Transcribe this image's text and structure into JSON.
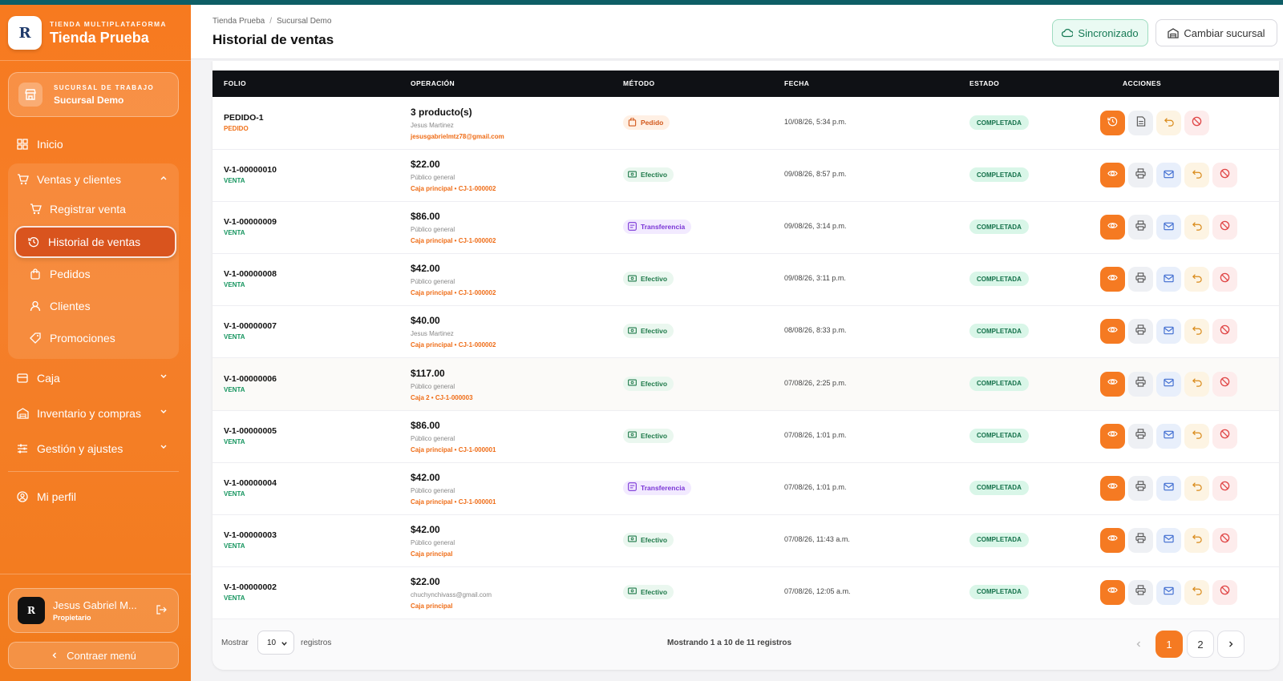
{
  "brand": {
    "kicker": "TIENDA MULTIPLATAFORMA",
    "name": "Tienda Prueba"
  },
  "branch": {
    "kicker": "SUCURSAL DE TRABAJO",
    "name": "Sucursal Demo"
  },
  "nav": {
    "inicio": "Inicio",
    "ventas_clientes": "Ventas y clientes",
    "registrar_venta": "Registrar venta",
    "historial_ventas": "Historial de ventas",
    "pedidos": "Pedidos",
    "clientes": "Clientes",
    "promociones": "Promociones",
    "caja": "Caja",
    "inventario": "Inventario y compras",
    "gestion": "Gestión y ajustes",
    "perfil": "Mi perfil"
  },
  "user": {
    "name": "Jesus Gabriel M...",
    "role": "Propietario"
  },
  "collapse_label": "Contraer menú",
  "header": {
    "crumb_1": "Tienda Prueba",
    "crumb_sep": "/",
    "crumb_2": "Sucursal Demo",
    "title": "Historial de ventas",
    "sync_label": "Sincronizado",
    "change_branch_label": "Cambiar sucursal"
  },
  "table": {
    "columns": [
      "FOLIO",
      "OPERACIÓN",
      "MÉTODO",
      "FECHA",
      "ESTADO",
      "ACCIONES"
    ],
    "rows": [
      {
        "folio": "PEDIDO-1",
        "kind": "PEDIDO",
        "main": "3 producto(s)",
        "customer": "Jesus Martinez",
        "location": "jesusgabrielmtz78@gmail.com",
        "method": "Pedido",
        "date": "10/08/26, 5:34 p.m.",
        "status": "COMPLETADA"
      },
      {
        "folio": "V-1-00000010",
        "kind": "VENTA",
        "main": "$22.00",
        "customer": "Público general",
        "location": "Caja principal • CJ-1-000002",
        "method": "Efectivo",
        "date": "09/08/26, 8:57 p.m.",
        "status": "COMPLETADA"
      },
      {
        "folio": "V-1-00000009",
        "kind": "VENTA",
        "main": "$86.00",
        "customer": "Público general",
        "location": "Caja principal • CJ-1-000002",
        "method": "Transferencia",
        "date": "09/08/26, 3:14 p.m.",
        "status": "COMPLETADA"
      },
      {
        "folio": "V-1-00000008",
        "kind": "VENTA",
        "main": "$42.00",
        "customer": "Público general",
        "location": "Caja principal • CJ-1-000002",
        "method": "Efectivo",
        "date": "09/08/26, 3:11 p.m.",
        "status": "COMPLETADA"
      },
      {
        "folio": "V-1-00000007",
        "kind": "VENTA",
        "main": "$40.00",
        "customer": "Jesus Martinez",
        "location": "Caja principal • CJ-1-000002",
        "method": "Efectivo",
        "date": "08/08/26, 8:33 p.m.",
        "status": "COMPLETADA"
      },
      {
        "folio": "V-1-00000006",
        "kind": "VENTA",
        "main": "$117.00",
        "customer": "Público general",
        "location": "Caja 2 • CJ-1-000003",
        "method": "Efectivo",
        "date": "07/08/26, 2:25 p.m.",
        "status": "COMPLETADA"
      },
      {
        "folio": "V-1-00000005",
        "kind": "VENTA",
        "main": "$86.00",
        "customer": "Público general",
        "location": "Caja principal • CJ-1-000001",
        "method": "Efectivo",
        "date": "07/08/26, 1:01 p.m.",
        "status": "COMPLETADA"
      },
      {
        "folio": "V-1-00000004",
        "kind": "VENTA",
        "main": "$42.00",
        "customer": "Público general",
        "location": "Caja principal • CJ-1-000001",
        "method": "Transferencia",
        "date": "07/08/26, 1:01 p.m.",
        "status": "COMPLETADA"
      },
      {
        "folio": "V-1-00000003",
        "kind": "VENTA",
        "main": "$42.00",
        "customer": "Público general",
        "location": "Caja principal",
        "method": "Efectivo",
        "date": "07/08/26, 11:43 a.m.",
        "status": "COMPLETADA"
      },
      {
        "folio": "V-1-00000002",
        "kind": "VENTA",
        "main": "$22.00",
        "customer": "chuchynchivass@gmail.com",
        "location": "Caja principal",
        "method": "Efectivo",
        "date": "07/08/26, 12:05 a.m.",
        "status": "COMPLETADA"
      }
    ]
  },
  "footer": {
    "show_label": "Mostrar",
    "page_size": "10",
    "records_label": "registros",
    "summary": "Mostrando 1 a 10 de 11 registros",
    "pages": [
      "1",
      "2"
    ],
    "current_page": "1"
  },
  "colors": {
    "accent": "#f57a22",
    "sidebar": "#f77a1f",
    "header_dark": "#0f1115",
    "success": "#16955f",
    "top_strip": "#0e5e66"
  },
  "icons": {
    "inicio": "grid-icon",
    "ventas": "cart-icon",
    "historial": "history-icon",
    "pedidos": "bag-icon",
    "clientes": "user-icon",
    "promociones": "tag-icon",
    "caja": "cashbox-icon",
    "inventario": "warehouse-icon",
    "gestion": "sliders-icon",
    "perfil": "profile-icon",
    "sync": "cloud-icon",
    "branch": "building-icon",
    "view": "eye-icon",
    "print": "printer-icon",
    "email": "mail-icon",
    "refund": "undo-icon",
    "cancel": "ban-icon"
  }
}
